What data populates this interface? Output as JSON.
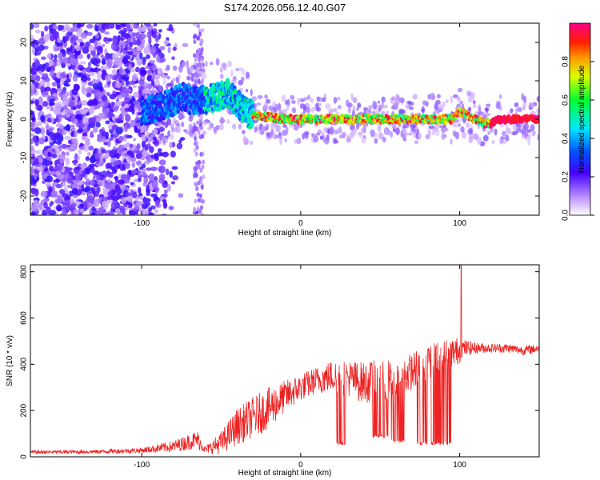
{
  "title": "S174.2026.056.12.40.G07",
  "colors": {
    "snr_line": "#ee2222",
    "frame": "#000000"
  },
  "chart_data": [
    {
      "type": "heatmap",
      "name": "spectrogram",
      "xlabel": "Height of straight line (km)",
      "ylabel": "Frequency (Hz)",
      "xlim": [
        -170,
        150
      ],
      "ylim": [
        -25,
        25
      ],
      "xticks": [
        -100,
        0,
        100
      ],
      "xtick_labels": [
        "-100",
        "0",
        "100"
      ],
      "yticks": [
        20,
        10,
        0,
        -10,
        -20
      ],
      "ytick_labels": [
        "20",
        "10",
        "0",
        "-10",
        "-20"
      ],
      "colorbar": {
        "label": "Normalized spectral amplitude",
        "range": [
          0.0,
          1.0
        ],
        "ticks": [
          0.0,
          0.2,
          0.4,
          0.6,
          0.8
        ],
        "tick_labels": [
          "0.0",
          "0.2",
          "0.4",
          "0.6",
          "0.8"
        ]
      },
      "ridge": {
        "x": [
          -100,
          -90,
          -80,
          -75,
          -70,
          -60,
          -50,
          -45,
          -40,
          -35,
          -30,
          -20,
          -10,
          0,
          20,
          50,
          80,
          95,
          100,
          105,
          115,
          120,
          125,
          150
        ],
        "freq": [
          2,
          3,
          4.5,
          6,
          5,
          5,
          6,
          7,
          4,
          2,
          1,
          0.5,
          0,
          0,
          0,
          0,
          0,
          0,
          2,
          1,
          -1,
          -1,
          0,
          0
        ]
      }
    },
    {
      "type": "line",
      "name": "snr",
      "xlabel": "Height of straight line (km)",
      "ylabel": "SNR (10 * v/v)",
      "xlim": [
        -170,
        150
      ],
      "ylim": [
        0,
        830
      ],
      "xticks": [
        -100,
        0,
        100
      ],
      "xtick_labels": [
        "-100",
        "0",
        "100"
      ],
      "yticks": [
        0,
        200,
        400,
        600,
        800
      ],
      "ytick_labels": [
        "0",
        "200",
        "400",
        "600",
        "800"
      ],
      "envelope": {
        "x": [
          -170,
          -130,
          -100,
          -80,
          -65,
          -60,
          -50,
          -40,
          -30,
          -20,
          -10,
          0,
          10,
          20,
          30,
          40,
          50,
          60,
          70,
          80,
          90,
          100,
          101,
          110,
          120,
          130,
          140,
          150
        ],
        "base": [
          20,
          22,
          28,
          45,
          75,
          30,
          60,
          130,
          170,
          210,
          260,
          300,
          330,
          350,
          340,
          320,
          330,
          330,
          370,
          410,
          440,
          460,
          470,
          470,
          470,
          470,
          460,
          470
        ],
        "amp": [
          8,
          8,
          12,
          25,
          40,
          15,
          50,
          80,
          90,
          90,
          70,
          60,
          60,
          70,
          80,
          90,
          90,
          90,
          80,
          80,
          70,
          60,
          40,
          25,
          20,
          20,
          20,
          20
        ]
      },
      "dips": [
        [
          22,
          28,
          50
        ],
        [
          45,
          55,
          80
        ],
        [
          57,
          65,
          60
        ],
        [
          73,
          80,
          50
        ],
        [
          82,
          95,
          50
        ]
      ],
      "peak": {
        "x": 101,
        "y": 830
      }
    }
  ]
}
